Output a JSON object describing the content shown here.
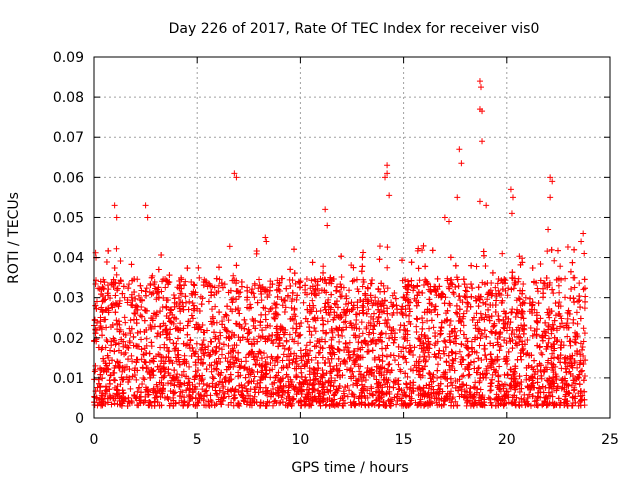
{
  "chart_data": {
    "type": "scatter",
    "title": "Day 226 of 2017, Rate Of TEC Index for receiver vis0",
    "xlabel": "GPS time / hours",
    "ylabel": "ROTI / TECUs",
    "xlim": [
      0,
      25
    ],
    "ylim": [
      0,
      0.09
    ],
    "xticks": [
      0,
      5,
      10,
      15,
      20,
      25
    ],
    "xtick_labels": [
      "0",
      "5",
      "10",
      "15",
      "20",
      "25"
    ],
    "yticks": [
      0,
      0.01,
      0.02,
      0.03,
      0.04,
      0.05,
      0.06,
      0.07,
      0.08,
      0.09
    ],
    "ytick_labels": [
      "0",
      "0.01",
      "0.02",
      "0.03",
      "0.04",
      "0.05",
      "0.06",
      "0.07",
      "0.08",
      "0.09"
    ],
    "grid": true,
    "marker": "+",
    "series_color": "#ff0000",
    "series": [
      {
        "name": "ROTI",
        "note": "Dense point cloud over 0-23.8 h; values mostly 0.005-0.035 TECU/min with isolated spikes.",
        "data_hours_range": [
          0,
          23.8
        ],
        "baseline_range": [
          0.003,
          0.035
        ],
        "outliers": [
          {
            "x": 1.0,
            "y": 0.053
          },
          {
            "x": 1.1,
            "y": 0.05
          },
          {
            "x": 2.5,
            "y": 0.053
          },
          {
            "x": 2.6,
            "y": 0.05
          },
          {
            "x": 6.8,
            "y": 0.061
          },
          {
            "x": 6.9,
            "y": 0.06
          },
          {
            "x": 8.3,
            "y": 0.045
          },
          {
            "x": 8.35,
            "y": 0.044
          },
          {
            "x": 11.2,
            "y": 0.052
          },
          {
            "x": 11.3,
            "y": 0.048
          },
          {
            "x": 14.2,
            "y": 0.063
          },
          {
            "x": 14.2,
            "y": 0.061
          },
          {
            "x": 14.1,
            "y": 0.06
          },
          {
            "x": 14.3,
            "y": 0.0555
          },
          {
            "x": 17.0,
            "y": 0.05
          },
          {
            "x": 17.2,
            "y": 0.049
          },
          {
            "x": 17.7,
            "y": 0.067
          },
          {
            "x": 17.8,
            "y": 0.0635
          },
          {
            "x": 17.6,
            "y": 0.055
          },
          {
            "x": 18.7,
            "y": 0.084
          },
          {
            "x": 18.75,
            "y": 0.0825
          },
          {
            "x": 18.7,
            "y": 0.077
          },
          {
            "x": 18.8,
            "y": 0.0765
          },
          {
            "x": 18.8,
            "y": 0.069
          },
          {
            "x": 18.7,
            "y": 0.054
          },
          {
            "x": 19.0,
            "y": 0.053
          },
          {
            "x": 20.2,
            "y": 0.057
          },
          {
            "x": 20.3,
            "y": 0.055
          },
          {
            "x": 20.25,
            "y": 0.051
          },
          {
            "x": 22.1,
            "y": 0.06
          },
          {
            "x": 22.2,
            "y": 0.059
          },
          {
            "x": 22.1,
            "y": 0.055
          },
          {
            "x": 22.0,
            "y": 0.047
          },
          {
            "x": 23.7,
            "y": 0.046
          },
          {
            "x": 23.6,
            "y": 0.044
          },
          {
            "x": 23.75,
            "y": 0.041
          }
        ]
      }
    ]
  }
}
